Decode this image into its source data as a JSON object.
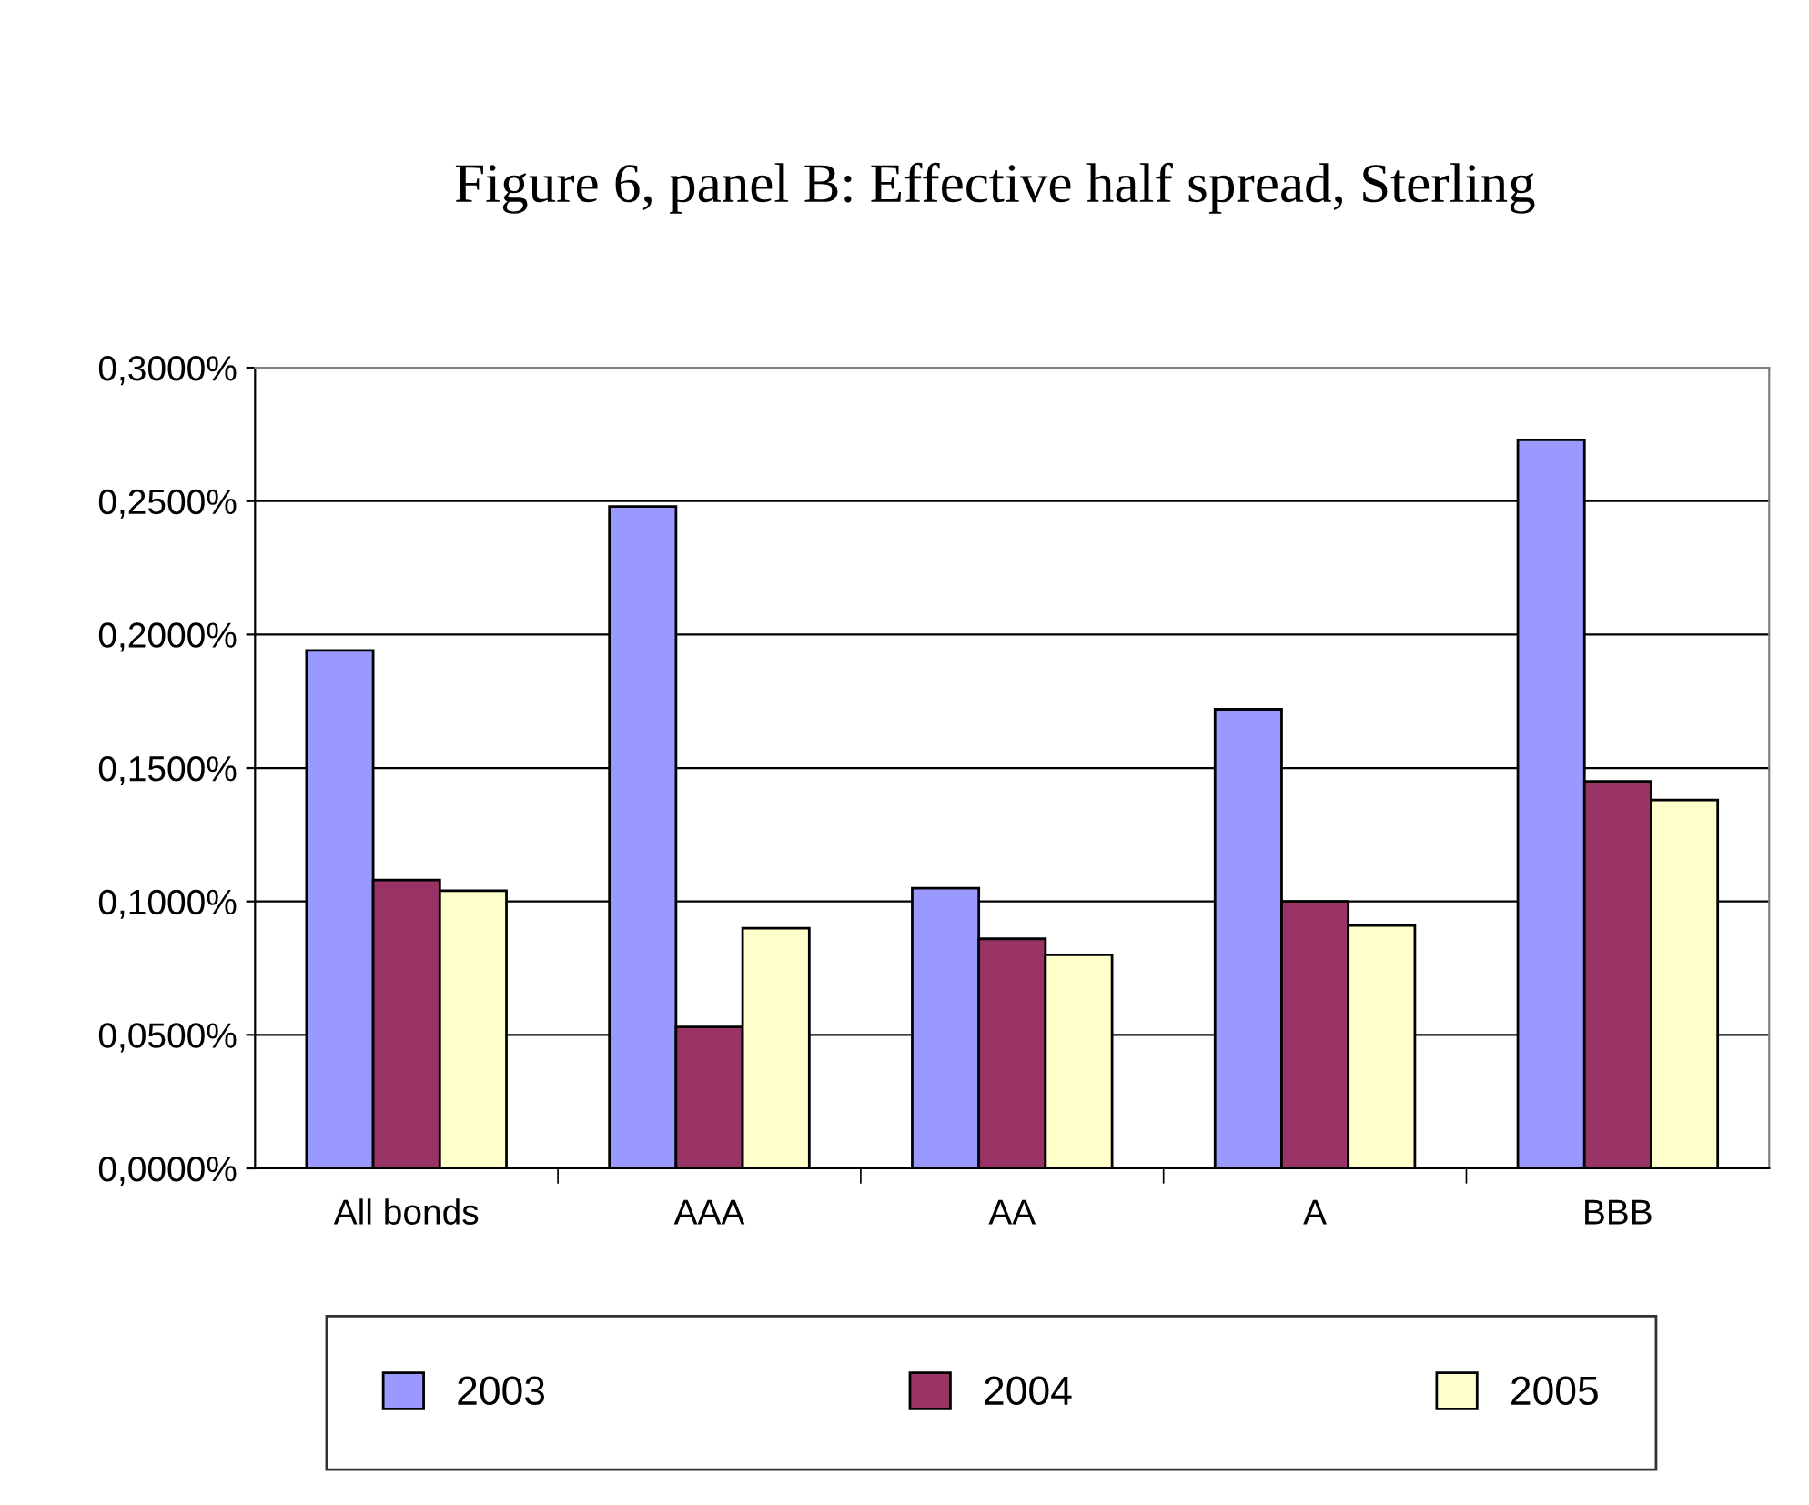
{
  "chart_data": {
    "type": "bar",
    "title": "Figure 6, panel B: Effective half spread, Sterling",
    "categories": [
      "All bonds",
      "AAA",
      "AA",
      "A",
      "BBB"
    ],
    "series": [
      {
        "name": "2003",
        "color": "#9999ff",
        "values": [
          0.194,
          0.248,
          0.105,
          0.172,
          0.273
        ]
      },
      {
        "name": "2004",
        "color": "#993366",
        "values": [
          0.108,
          0.053,
          0.086,
          0.1,
          0.145
        ]
      },
      {
        "name": "2005",
        "color": "#ffffcc",
        "values": [
          0.104,
          0.09,
          0.08,
          0.091,
          0.138
        ]
      }
    ],
    "ylim": [
      0,
      0.3
    ],
    "yticks": [
      {
        "value": 0,
        "label": "0,0000%"
      },
      {
        "value": 0.05,
        "label": "0,0500%"
      },
      {
        "value": 0.1,
        "label": "0,1000%"
      },
      {
        "value": 0.15,
        "label": "0,1500%"
      },
      {
        "value": 0.2,
        "label": "0,2000%"
      },
      {
        "value": 0.25,
        "label": "0,2500%"
      },
      {
        "value": 0.3,
        "label": "0,3000%"
      }
    ],
    "grid": "y",
    "legend": "bottom"
  }
}
